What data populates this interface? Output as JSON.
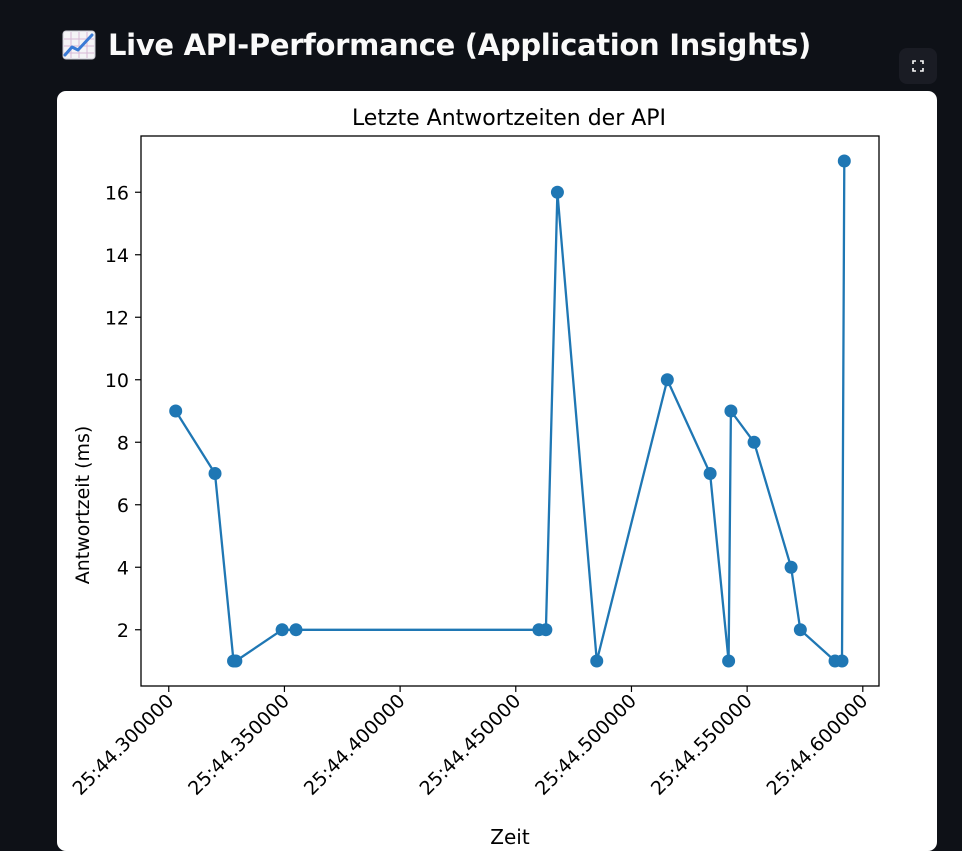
{
  "header": {
    "title": "Live API-Performance (Application Insights)",
    "icon": "chart-increasing-icon"
  },
  "toolbar": {
    "fullscreen_icon": "fullscreen-icon"
  },
  "colors": {
    "background": "#0e1117",
    "series": "#1f77b4"
  },
  "chart_data": {
    "type": "line",
    "title": "Letzte Antwortzeiten der API",
    "xlabel": "Zeit",
    "ylabel": "Antwortzeit (ms)",
    "xlim": [
      "25:44.288",
      "25:44.607"
    ],
    "ylim": [
      0.2,
      17.8
    ],
    "x_ticks": [
      "25:44.300000",
      "25:44.350000",
      "25:44.400000",
      "25:44.450000",
      "25:44.500000",
      "25:44.550000",
      "25:44.600000"
    ],
    "y_ticks": [
      2,
      4,
      6,
      8,
      10,
      12,
      14,
      16
    ],
    "grid": false,
    "series": [
      {
        "points": [
          {
            "x": "25:44.3030",
            "y": 9
          },
          {
            "x": "25:44.3200",
            "y": 7
          },
          {
            "x": "25:44.3280",
            "y": 1
          },
          {
            "x": "25:44.3290",
            "y": 1
          },
          {
            "x": "25:44.3490",
            "y": 2
          },
          {
            "x": "25:44.3550",
            "y": 2
          },
          {
            "x": "25:44.4600",
            "y": 2
          },
          {
            "x": "25:44.4630",
            "y": 2
          },
          {
            "x": "25:44.4680",
            "y": 16
          },
          {
            "x": "25:44.4850",
            "y": 1
          },
          {
            "x": "25:44.5155",
            "y": 10
          },
          {
            "x": "25:44.5340",
            "y": 7
          },
          {
            "x": "25:44.5420",
            "y": 1
          },
          {
            "x": "25:44.5430",
            "y": 9
          },
          {
            "x": "25:44.5530",
            "y": 8
          },
          {
            "x": "25:44.5690",
            "y": 4
          },
          {
            "x": "25:44.5730",
            "y": 2
          },
          {
            "x": "25:44.5880",
            "y": 1
          },
          {
            "x": "25:44.5910",
            "y": 1
          },
          {
            "x": "25:44.5920",
            "y": 17
          }
        ]
      }
    ]
  }
}
